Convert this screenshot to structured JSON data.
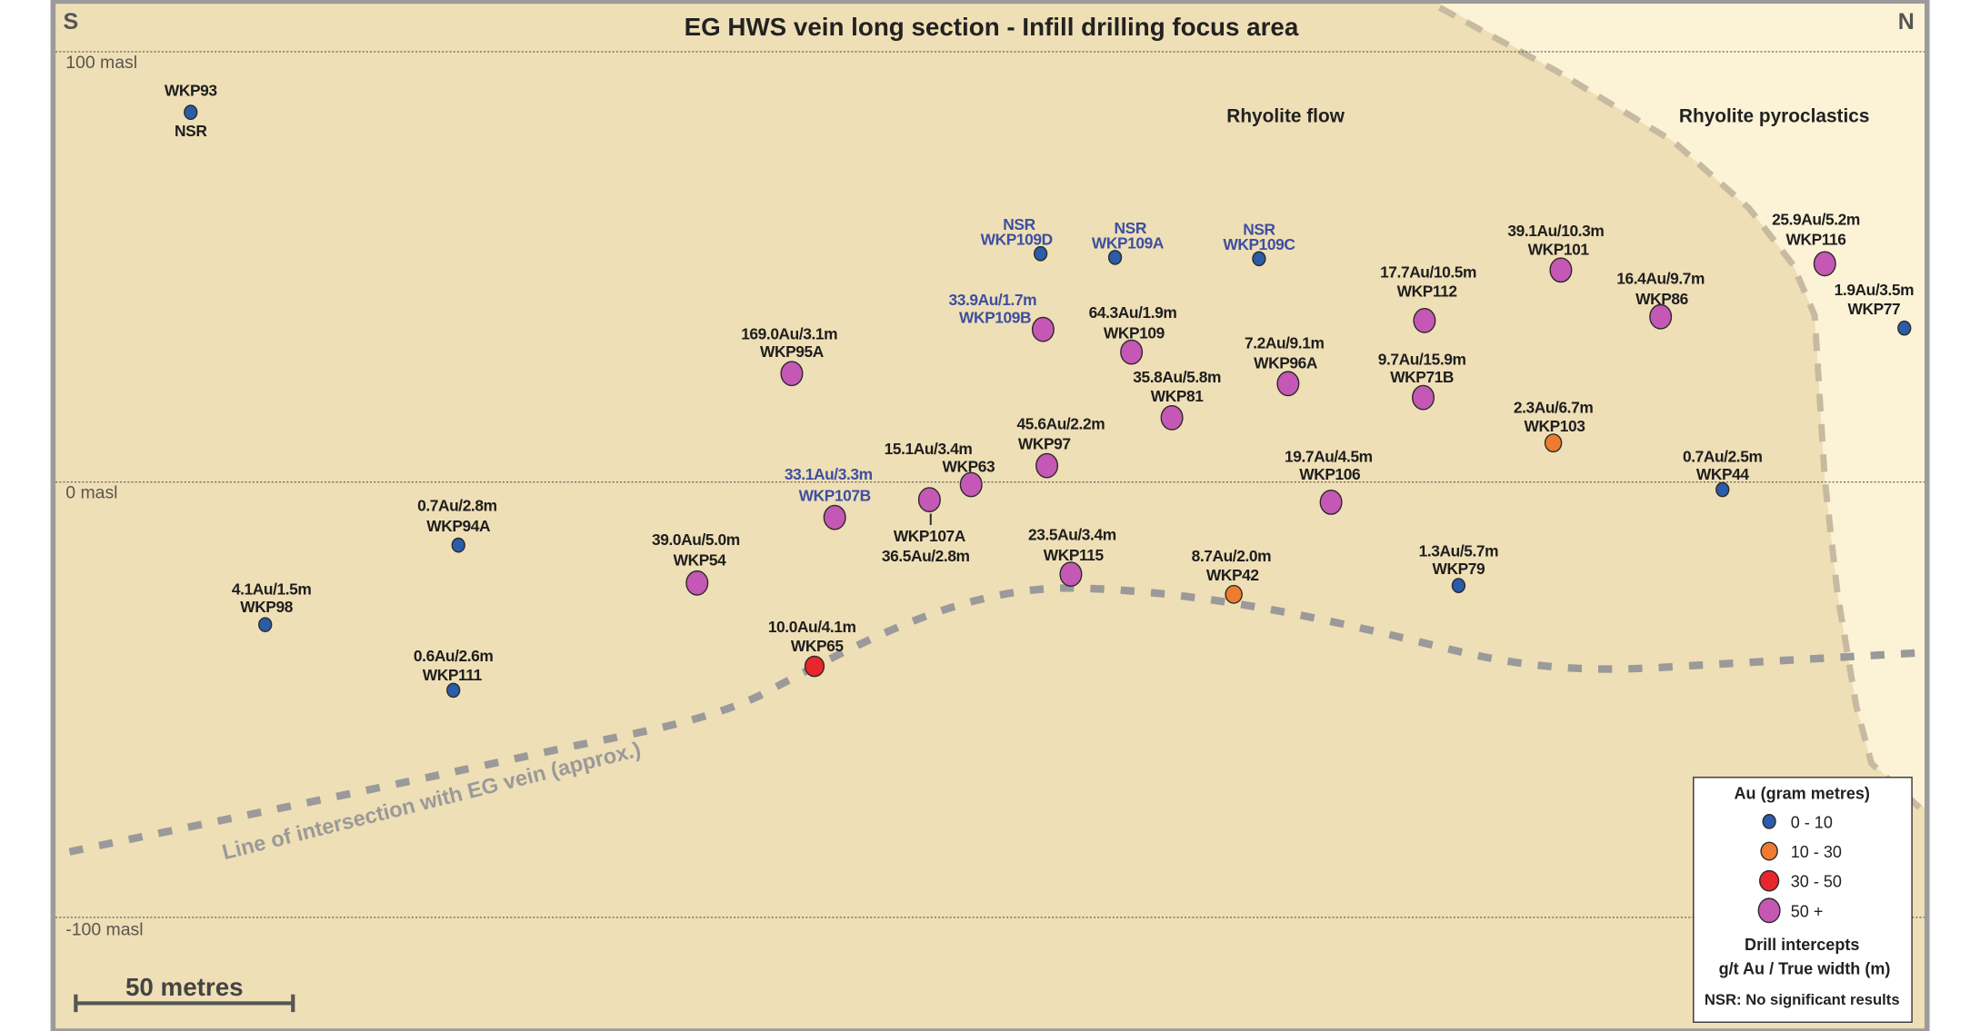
{
  "title": "EG HWS vein long section - Infill drilling focus area",
  "compass": {
    "south": "S",
    "north": "N"
  },
  "elevation_labels": [
    "100 masl",
    "0 masl",
    "-100 masl"
  ],
  "regions": {
    "flow": "Rhyolite flow",
    "pyroclastics": "Rhyolite pyroclastics"
  },
  "vein_line_label": "Line of intersection with EG vein (approx.)",
  "scale_bar": "50 metres",
  "colors": {
    "background": "#efdfb6",
    "pyroclastics": "#fcf3d6",
    "frame": "#9b9b9b",
    "blue_text": "#3c4fa0",
    "cat_0_10": "#2a5ca8",
    "cat_10_30": "#ee7b30",
    "cat_30_50": "#e8262b",
    "cat_50_plus": "#c458b4"
  },
  "legend": {
    "title": "Au (gram metres)",
    "items": [
      {
        "label": "0 - 10",
        "category": "cat_0_10"
      },
      {
        "label": "10 - 30",
        "category": "cat_10_30"
      },
      {
        "label": "30 - 50",
        "category": "cat_30_50"
      },
      {
        "label": "50 +",
        "category": "cat_50_plus"
      }
    ],
    "subtitle": "Drill intercepts",
    "units": "g/t Au / True width (m)",
    "note": "NSR: No significant results"
  },
  "holes": [
    {
      "id": "WKP93",
      "result": "NSR",
      "category": "cat_0_10",
      "blue_label": false
    },
    {
      "id": "WKP109D",
      "result": "NSR",
      "category": "cat_0_10",
      "blue_label": true
    },
    {
      "id": "WKP109A",
      "result": "NSR",
      "category": "cat_0_10",
      "blue_label": true
    },
    {
      "id": "WKP109C",
      "result": "NSR",
      "category": "cat_0_10",
      "blue_label": true
    },
    {
      "id": "WKP109B",
      "result": "33.9Au/1.7m",
      "category": "cat_50_plus",
      "blue_label": true
    },
    {
      "id": "WKP109",
      "result": "64.3Au/1.9m",
      "category": "cat_50_plus",
      "blue_label": false
    },
    {
      "id": "WKP95A",
      "result": "169.0Au/3.1m",
      "category": "cat_50_plus",
      "blue_label": false
    },
    {
      "id": "WKP81",
      "result": "35.8Au/5.8m",
      "category": "cat_50_plus",
      "blue_label": false
    },
    {
      "id": "WKP96A",
      "result": "7.2Au/9.1m",
      "category": "cat_50_plus",
      "blue_label": false
    },
    {
      "id": "WKP112",
      "result": "17.7Au/10.5m",
      "category": "cat_50_plus",
      "blue_label": false
    },
    {
      "id": "WKP101",
      "result": "39.1Au/10.3m",
      "category": "cat_50_plus",
      "blue_label": false
    },
    {
      "id": "WKP71B",
      "result": "9.7Au/15.9m",
      "category": "cat_50_plus",
      "blue_label": false
    },
    {
      "id": "WKP86",
      "result": "16.4Au/9.7m",
      "category": "cat_50_plus",
      "blue_label": false
    },
    {
      "id": "WKP116",
      "result": "25.9Au/5.2m",
      "category": "cat_50_plus",
      "blue_label": false
    },
    {
      "id": "WKP77",
      "result": "1.9Au/3.5m",
      "category": "cat_0_10",
      "blue_label": false
    },
    {
      "id": "WKP103",
      "result": "2.3Au/6.7m",
      "category": "cat_10_30",
      "blue_label": false
    },
    {
      "id": "WKP44",
      "result": "0.7Au/2.5m",
      "category": "cat_0_10",
      "blue_label": false
    },
    {
      "id": "WKP97",
      "result": "45.6Au/2.2m",
      "category": "cat_50_plus",
      "blue_label": false
    },
    {
      "id": "WKP63",
      "result": "15.1Au/3.4m",
      "category": "cat_50_plus",
      "blue_label": false
    },
    {
      "id": "WKP107A",
      "result": "36.5Au/2.8m",
      "category": "cat_50_plus",
      "blue_label": false
    },
    {
      "id": "WKP107B",
      "result": "33.1Au/3.3m",
      "category": "cat_50_plus",
      "blue_label": true
    },
    {
      "id": "WKP106",
      "result": "19.7Au/4.5m",
      "category": "cat_50_plus",
      "blue_label": false
    },
    {
      "id": "WKP94A",
      "result": "0.7Au/2.8m",
      "category": "cat_0_10",
      "blue_label": false
    },
    {
      "id": "WKP54",
      "result": "39.0Au/5.0m",
      "category": "cat_50_plus",
      "blue_label": false
    },
    {
      "id": "WKP115",
      "result": "23.5Au/3.4m",
      "category": "cat_50_plus",
      "blue_label": false
    },
    {
      "id": "WKP42",
      "result": "8.7Au/2.0m",
      "category": "cat_10_30",
      "blue_label": false
    },
    {
      "id": "WKP79",
      "result": "1.3Au/5.7m",
      "category": "cat_0_10",
      "blue_label": false
    },
    {
      "id": "WKP98",
      "result": "4.1Au/1.5m",
      "category": "cat_0_10",
      "blue_label": false
    },
    {
      "id": "WKP65",
      "result": "10.0Au/4.1m",
      "category": "cat_30_50",
      "blue_label": false
    },
    {
      "id": "WKP111",
      "result": "0.6Au/2.6m",
      "category": "cat_0_10",
      "blue_label": false
    }
  ]
}
